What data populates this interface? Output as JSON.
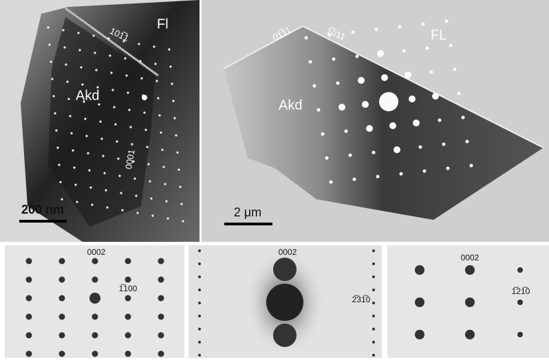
{
  "panels": [
    {
      "labels": {
        "phase_top": "Fl",
        "phase_main": "Akd",
        "boundary_top": "101̅1",
        "boundary_side": "0001",
        "scale": "200 nm"
      }
    },
    {
      "labels": {
        "phase_top": "FL",
        "phase_main": "Akd",
        "boundary_left": "01̅11",
        "boundary_right": "1̅011",
        "scale": "2 μm"
      }
    },
    {
      "labels": {
        "top": "0002",
        "side": "1̅100"
      }
    },
    {
      "labels": {
        "top": "0002",
        "side": "2̅31̅0"
      }
    },
    {
      "labels": {
        "top": "0002",
        "side": "1̅21̅0"
      }
    }
  ]
}
